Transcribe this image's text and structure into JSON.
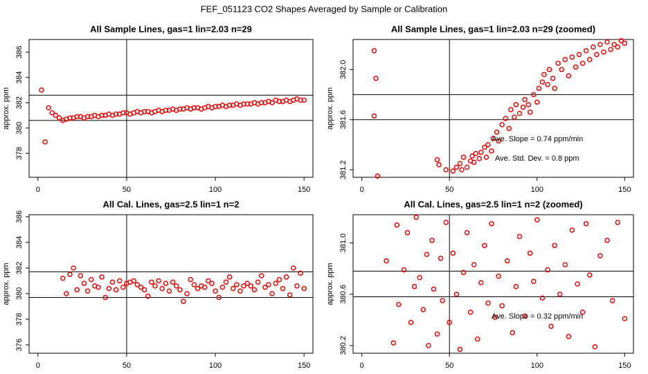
{
  "title": "FEF_051123  CO2 Shapes Averaged by Sample or Calibration",
  "chart_data": [
    {
      "type": "scatter",
      "title": "All Sample Lines, gas=1 lin=2.03 n=29",
      "ylabel": "approx. ppm",
      "xlim": [
        -5,
        155
      ],
      "ylim": [
        376.1,
        387
      ],
      "xticks": [
        0,
        50,
        100,
        150
      ],
      "yticks": [
        378,
        380,
        382,
        384,
        386
      ],
      "hlines": [
        382.6,
        380.6
      ],
      "vline": 50,
      "x": [
        2,
        4,
        6,
        8,
        10,
        12,
        14,
        16,
        18,
        20,
        22,
        24,
        26,
        28,
        30,
        32,
        34,
        36,
        38,
        40,
        42,
        44,
        46,
        48,
        50,
        52,
        54,
        56,
        58,
        60,
        62,
        64,
        66,
        68,
        70,
        72,
        74,
        76,
        78,
        80,
        82,
        84,
        86,
        88,
        90,
        92,
        94,
        96,
        98,
        100,
        102,
        104,
        106,
        108,
        110,
        112,
        114,
        116,
        118,
        120,
        122,
        124,
        126,
        128,
        130,
        132,
        134,
        136,
        138,
        140,
        142,
        144,
        146,
        148,
        150
      ],
      "series": [
        {
          "color": "#ff0000",
          "values": [
            383.0,
            378.9,
            381.6,
            381.2,
            381.0,
            380.8,
            380.6,
            380.7,
            380.8,
            380.8,
            380.9,
            380.9,
            380.8,
            380.9,
            380.9,
            381.0,
            380.9,
            381.0,
            381.0,
            381.1,
            381.0,
            381.1,
            381.1,
            381.2,
            381.2,
            381.1,
            381.2,
            381.3,
            381.2,
            381.3,
            381.3,
            381.2,
            381.3,
            381.4,
            381.3,
            381.4,
            381.4,
            381.5,
            381.4,
            381.5,
            381.5,
            381.6,
            381.5,
            381.6,
            381.6,
            381.5,
            381.6,
            381.7,
            381.6,
            381.7,
            381.7,
            381.8,
            381.7,
            381.8,
            381.8,
            381.9,
            381.8,
            381.9,
            381.9,
            381.9,
            382.0,
            381.9,
            382.0,
            382.0,
            382.1,
            382.0,
            382.2,
            382.1,
            382.1,
            382.2,
            382.1,
            382.2,
            382.3,
            382.2,
            382.2
          ]
        }
      ]
    },
    {
      "type": "scatter",
      "title": "All Sample Lines, gas=1 lin=2.03 n=29 (zoomed)",
      "ylabel": "approx. ppm",
      "xlim": [
        -5,
        155
      ],
      "ylim": [
        381.14,
        382.24
      ],
      "xticks": [
        0,
        50,
        100,
        150
      ],
      "yticks": [
        381.2,
        381.6,
        {
          "value": 382,
          "label": "382.0"
        }
      ],
      "hlines": [
        381.8,
        381.6
      ],
      "vline": 50,
      "annotations": [
        "Ave. Slope =  0.74  ppm/min",
        "Ave. Std. Dev. =  0.8  ppm"
      ],
      "x": [
        7,
        7,
        8,
        9,
        43,
        44,
        48,
        52,
        54,
        56,
        57,
        58,
        60,
        62,
        63,
        64,
        65,
        67,
        68,
        70,
        71,
        72,
        74,
        75,
        77,
        78,
        80,
        82,
        84,
        85,
        87,
        88,
        90,
        92,
        93,
        95,
        96,
        98,
        100,
        101,
        103,
        104,
        106,
        107,
        109,
        110,
        112,
        114,
        116,
        118,
        120,
        122,
        124,
        126,
        128,
        130,
        132,
        134,
        136,
        138,
        140,
        142,
        144,
        146,
        148,
        150
      ],
      "series": [
        {
          "color": "#ff0000",
          "values": [
            382.15,
            381.63,
            381.93,
            381.15,
            381.28,
            381.24,
            381.2,
            381.19,
            381.22,
            381.25,
            381.2,
            381.3,
            381.22,
            381.27,
            381.31,
            381.26,
            381.33,
            381.29,
            381.34,
            381.38,
            381.3,
            381.4,
            381.35,
            381.45,
            381.5,
            381.43,
            381.56,
            381.61,
            381.53,
            381.68,
            381.62,
            381.72,
            381.65,
            381.7,
            381.76,
            381.72,
            381.66,
            381.8,
            381.74,
            381.85,
            381.9,
            381.96,
            381.88,
            382.0,
            381.93,
            381.85,
            382.05,
            382.0,
            382.08,
            381.95,
            382.1,
            382.02,
            382.12,
            382.05,
            382.15,
            382.08,
            382.18,
            382.12,
            382.2,
            382.14,
            382.22,
            382.16,
            382.2,
            382.18,
            382.23,
            382.21
          ]
        }
      ]
    },
    {
      "type": "scatter",
      "title": "All Cal. Lines, gas=2.5 lin=1 n=2",
      "ylabel": "approx. ppm",
      "xlim": [
        -5,
        155
      ],
      "ylim": [
        375.35,
        386.16
      ],
      "xticks": [
        0,
        50,
        100,
        150
      ],
      "yticks": [
        376,
        378,
        380,
        382,
        384,
        386
      ],
      "hlines": [
        381.7,
        379.7
      ],
      "vline": 50,
      "x": [
        14,
        16,
        18,
        20,
        22,
        24,
        26,
        28,
        30,
        32,
        34,
        36,
        38,
        40,
        42,
        44,
        46,
        48,
        50,
        52,
        54,
        56,
        58,
        60,
        62,
        64,
        66,
        68,
        70,
        72,
        74,
        76,
        78,
        80,
        82,
        84,
        86,
        88,
        90,
        92,
        94,
        96,
        98,
        100,
        102,
        104,
        106,
        108,
        110,
        112,
        114,
        116,
        118,
        120,
        122,
        124,
        126,
        128,
        130,
        132,
        134,
        136,
        138,
        140,
        142,
        144,
        146,
        148,
        150
      ],
      "series": [
        {
          "color": "#ff0000",
          "values": [
            381.2,
            380.0,
            381.5,
            382.0,
            380.3,
            381.4,
            380.8,
            380.2,
            381.1,
            380.6,
            380.5,
            381.3,
            379.7,
            380.4,
            380.9,
            380.3,
            381.0,
            380.5,
            380.8,
            380.9,
            381.0,
            380.7,
            380.5,
            380.3,
            379.8,
            380.9,
            380.6,
            381.0,
            380.4,
            380.8,
            380.2,
            380.9,
            380.6,
            380.3,
            379.4,
            380.0,
            381.1,
            380.7,
            380.4,
            380.6,
            380.5,
            381.0,
            380.8,
            380.2,
            379.7,
            380.5,
            380.9,
            381.3,
            380.4,
            380.7,
            380.2,
            380.6,
            380.8,
            380.6,
            380.3,
            380.9,
            381.4,
            380.5,
            380.7,
            380.0,
            380.8,
            381.1,
            380.4,
            381.3,
            379.9,
            382.0,
            380.6,
            381.6,
            380.4
          ]
        }
      ]
    },
    {
      "type": "scatter",
      "title": "All Cal. Lines, gas=2.5 lin=1 n=2 (zoomed)",
      "ylabel": "approx. ppm",
      "xlim": [
        -5,
        155
      ],
      "ylim": [
        380.14,
        381.22
      ],
      "xticks": [
        0,
        50,
        100,
        150
      ],
      "yticks": [
        380.2,
        380.6,
        {
          "value": 381,
          "label": "381.0"
        }
      ],
      "hlines": [
        380.78,
        380.58
      ],
      "vline": 50,
      "annotations": [
        "Ave. Slope =  0.32  ppm/min"
      ],
      "x": [
        14,
        18,
        20,
        21,
        24,
        26,
        28,
        30,
        31,
        33,
        35,
        37,
        38,
        40,
        41,
        43,
        45,
        46,
        48,
        50,
        52,
        54,
        56,
        58,
        60,
        62,
        64,
        66,
        68,
        70,
        72,
        74,
        76,
        78,
        80,
        83,
        86,
        88,
        90,
        93,
        96,
        98,
        100,
        103,
        106,
        108,
        110,
        113,
        116,
        118,
        120,
        123,
        126,
        128,
        130,
        133,
        136,
        140,
        143,
        146,
        150
      ],
      "series": [
        {
          "color": "#ff0000",
          "values": [
            380.86,
            380.22,
            381.14,
            380.52,
            380.79,
            381.08,
            380.38,
            380.66,
            381.2,
            380.73,
            380.48,
            380.91,
            380.2,
            381.02,
            380.64,
            380.29,
            380.88,
            380.55,
            381.16,
            380.38,
            380.92,
            380.6,
            380.17,
            380.77,
            381.08,
            380.46,
            380.83,
            380.25,
            380.69,
            380.98,
            380.53,
            381.15,
            380.42,
            380.74,
            380.51,
            380.86,
            380.3,
            380.66,
            381.05,
            380.43,
            380.92,
            380.7,
            381.18,
            380.57,
            380.79,
            380.35,
            380.98,
            380.6,
            380.83,
            380.27,
            381.1,
            380.68,
            380.46,
            381.15,
            380.75,
            380.19,
            380.9,
            381.02,
            380.55,
            381.16,
            380.41
          ]
        }
      ]
    }
  ]
}
